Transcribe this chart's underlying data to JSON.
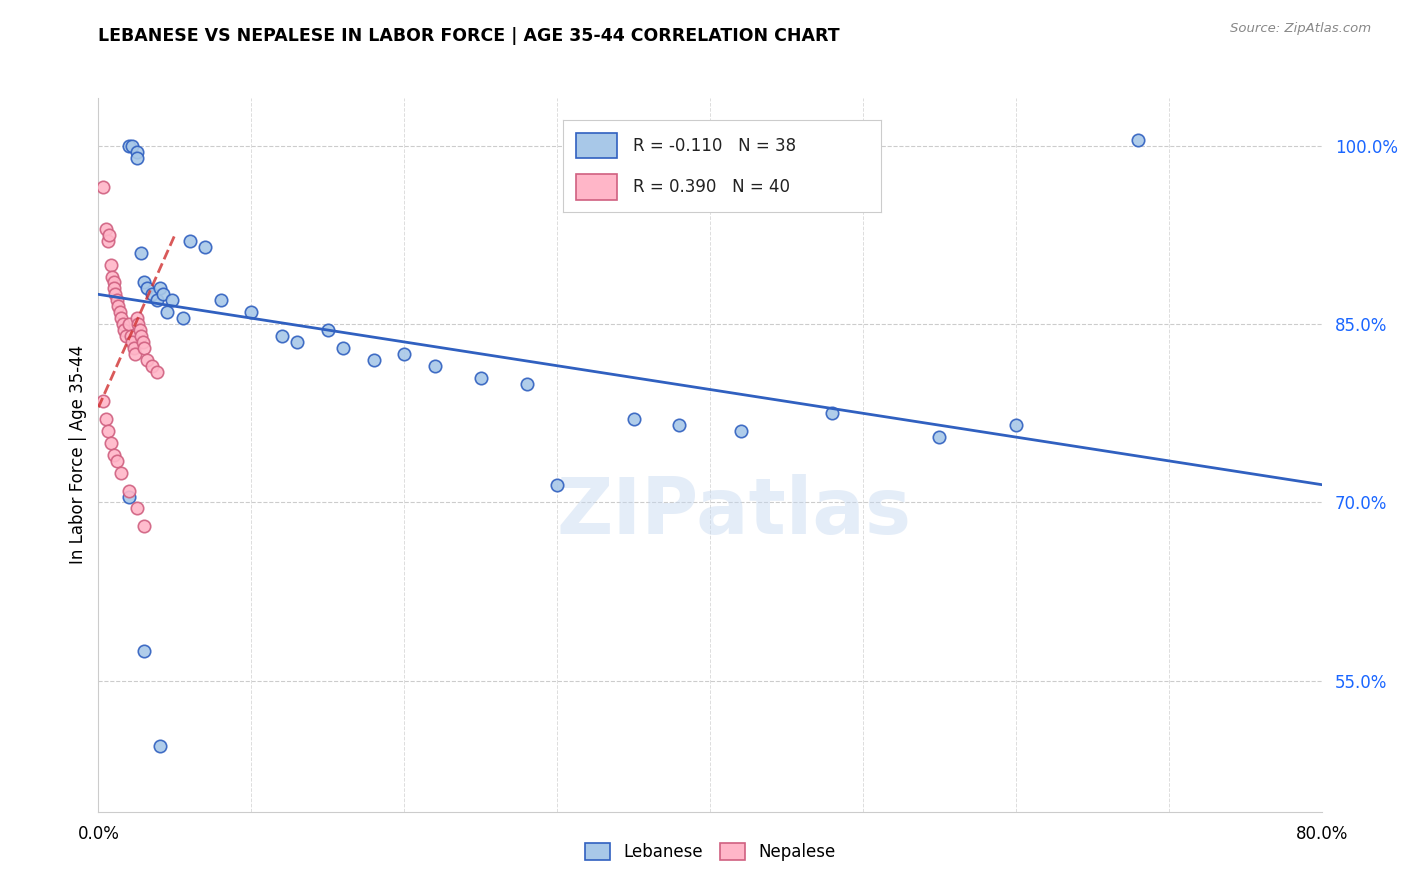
{
  "title": "LEBANESE VS NEPALESE IN LABOR FORCE | AGE 35-44 CORRELATION CHART",
  "source": "Source: ZipAtlas.com",
  "ylabel": "In Labor Force | Age 35-44",
  "legend_label1": "Lebanese",
  "legend_label2": "Nepalese",
  "r1": -0.11,
  "n1": 38,
  "r2": 0.39,
  "n2": 40,
  "color_lebanese": "#a8c8e8",
  "color_nepalese": "#ffb6c8",
  "color_trend_leb": "#3060c0",
  "color_trend_nep": "#d03030",
  "watermark": "ZIPatlas",
  "xlim": [
    0.0,
    80.0
  ],
  "ylim": [
    44.0,
    104.0
  ],
  "yticks": [
    55.0,
    70.0,
    85.0,
    100.0
  ],
  "xticks": [
    0.0,
    10.0,
    20.0,
    30.0,
    40.0,
    50.0,
    60.0,
    70.0,
    80.0
  ],
  "lebanese_x": [
    2.0,
    2.2,
    2.5,
    2.5,
    2.8,
    3.0,
    3.2,
    3.5,
    3.8,
    4.0,
    4.2,
    4.5,
    4.8,
    5.5,
    6.0,
    7.0,
    8.0,
    10.0,
    12.0,
    13.0,
    15.0,
    16.0,
    18.0,
    20.0,
    22.0,
    25.0,
    28.0,
    30.0,
    35.0,
    38.0,
    42.0,
    48.0,
    55.0,
    60.0,
    68.0,
    2.0,
    3.0,
    4.0
  ],
  "lebanese_y": [
    100.0,
    100.0,
    99.5,
    99.0,
    91.0,
    88.5,
    88.0,
    87.5,
    87.0,
    88.0,
    87.5,
    86.0,
    87.0,
    85.5,
    92.0,
    91.5,
    87.0,
    86.0,
    84.0,
    83.5,
    84.5,
    83.0,
    82.0,
    82.5,
    81.5,
    80.5,
    80.0,
    71.5,
    77.0,
    76.5,
    76.0,
    77.5,
    75.5,
    76.5,
    100.5,
    70.5,
    57.5,
    49.5
  ],
  "nepalese_x": [
    0.3,
    0.5,
    0.6,
    0.7,
    0.8,
    0.9,
    1.0,
    1.0,
    1.1,
    1.2,
    1.3,
    1.4,
    1.5,
    1.6,
    1.7,
    1.8,
    2.0,
    2.1,
    2.2,
    2.3,
    2.4,
    2.5,
    2.6,
    2.7,
    2.8,
    2.9,
    3.0,
    3.2,
    3.5,
    3.8,
    0.3,
    0.5,
    0.6,
    0.8,
    1.0,
    1.2,
    1.5,
    2.0,
    2.5,
    3.0
  ],
  "nepalese_y": [
    96.5,
    93.0,
    92.0,
    92.5,
    90.0,
    89.0,
    88.5,
    88.0,
    87.5,
    87.0,
    86.5,
    86.0,
    85.5,
    85.0,
    84.5,
    84.0,
    85.0,
    84.0,
    83.5,
    83.0,
    82.5,
    85.5,
    85.0,
    84.5,
    84.0,
    83.5,
    83.0,
    82.0,
    81.5,
    81.0,
    78.5,
    77.0,
    76.0,
    75.0,
    74.0,
    73.5,
    72.5,
    71.0,
    69.5,
    68.0
  ],
  "trend_leb_x0": 0.0,
  "trend_leb_x1": 80.0,
  "trend_leb_y0": 87.5,
  "trend_leb_y1": 71.5,
  "trend_nep_x0": 0.0,
  "trend_nep_x1": 5.0,
  "trend_nep_y0": 78.0,
  "trend_nep_y1": 92.5
}
